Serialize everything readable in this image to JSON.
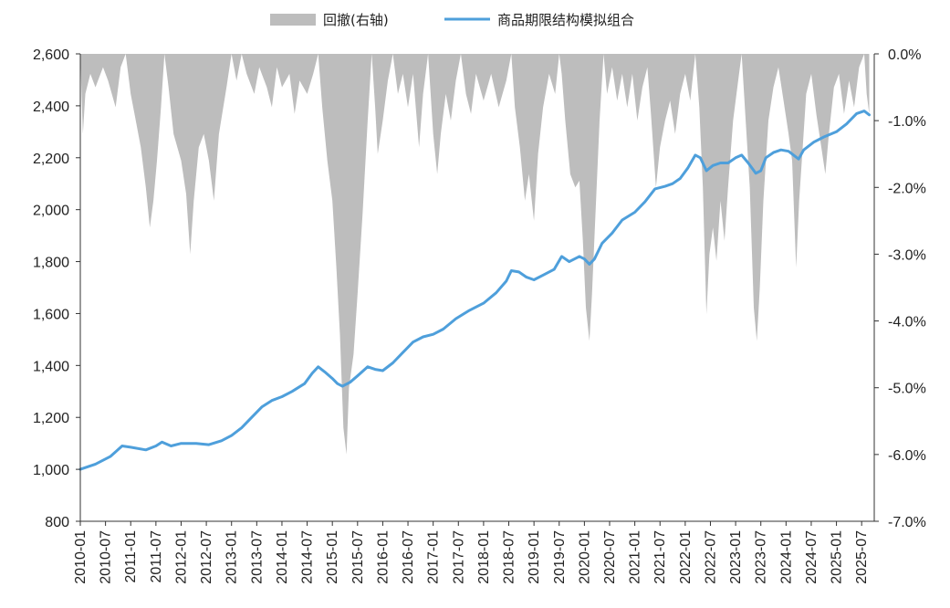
{
  "chart_data": {
    "type": "line",
    "title": "",
    "legend": {
      "placement": "top-center",
      "items": [
        {
          "label": "回撤(右轴)",
          "kind": "area",
          "color": "#bdbdbd"
        },
        {
          "label": "商品期限结构模拟组合",
          "kind": "line",
          "color": "#4e9fdb"
        }
      ]
    },
    "x_ticks": [
      "2010-01",
      "2010-07",
      "2011-01",
      "2011-07",
      "2012-01",
      "2012-07",
      "2013-01",
      "2013-07",
      "2014-01",
      "2014-07",
      "2015-01",
      "2015-07",
      "2016-01",
      "2016-07",
      "2017-01",
      "2017-07",
      "2018-01",
      "2018-07",
      "2019-01",
      "2019-07",
      "2020-01",
      "2020-07",
      "2021-01",
      "2021-07",
      "2022-01",
      "2022-07",
      "2023-01",
      "2023-07",
      "2024-01",
      "2024-07",
      "2025-01",
      "2025-07"
    ],
    "y_left": {
      "ticks": [
        "800",
        "1,000",
        "1,200",
        "1,400",
        "1,600",
        "1,800",
        "2,000",
        "2,200",
        "2,400",
        "2,600"
      ],
      "range": [
        800,
        2600
      ]
    },
    "y_right": {
      "ticks": [
        "0.0%",
        "-1.0%",
        "-2.0%",
        "-3.0%",
        "-4.0%",
        "-5.0%",
        "-6.0%",
        "-7.0%"
      ],
      "range": [
        -7.0,
        0.0
      ]
    },
    "grid": false,
    "series": [
      {
        "name": "商品期限结构模拟组合",
        "axis": "left",
        "color": "#4e9fdb",
        "points": [
          [
            2010.0,
            1000
          ],
          [
            2010.3,
            1020
          ],
          [
            2010.6,
            1050
          ],
          [
            2010.83,
            1090
          ],
          [
            2011.0,
            1085
          ],
          [
            2011.3,
            1075
          ],
          [
            2011.5,
            1090
          ],
          [
            2011.62,
            1105
          ],
          [
            2011.8,
            1090
          ],
          [
            2012.0,
            1100
          ],
          [
            2012.3,
            1100
          ],
          [
            2012.55,
            1095
          ],
          [
            2012.8,
            1110
          ],
          [
            2013.0,
            1130
          ],
          [
            2013.2,
            1160
          ],
          [
            2013.4,
            1200
          ],
          [
            2013.6,
            1240
          ],
          [
            2013.8,
            1265
          ],
          [
            2014.0,
            1280
          ],
          [
            2014.2,
            1300
          ],
          [
            2014.45,
            1330
          ],
          [
            2014.6,
            1370
          ],
          [
            2014.72,
            1395
          ],
          [
            2014.85,
            1375
          ],
          [
            2015.0,
            1350
          ],
          [
            2015.1,
            1330
          ],
          [
            2015.2,
            1320
          ],
          [
            2015.35,
            1335
          ],
          [
            2015.5,
            1360
          ],
          [
            2015.7,
            1395
          ],
          [
            2015.85,
            1385
          ],
          [
            2016.0,
            1380
          ],
          [
            2016.2,
            1410
          ],
          [
            2016.4,
            1450
          ],
          [
            2016.6,
            1490
          ],
          [
            2016.8,
            1510
          ],
          [
            2017.0,
            1520
          ],
          [
            2017.2,
            1540
          ],
          [
            2017.45,
            1580
          ],
          [
            2017.7,
            1610
          ],
          [
            2018.0,
            1640
          ],
          [
            2018.25,
            1680
          ],
          [
            2018.45,
            1725
          ],
          [
            2018.55,
            1765
          ],
          [
            2018.7,
            1760
          ],
          [
            2018.85,
            1740
          ],
          [
            2019.0,
            1730
          ],
          [
            2019.2,
            1750
          ],
          [
            2019.4,
            1770
          ],
          [
            2019.55,
            1820
          ],
          [
            2019.7,
            1800
          ],
          [
            2019.9,
            1820
          ],
          [
            2020.0,
            1810
          ],
          [
            2020.1,
            1790
          ],
          [
            2020.2,
            1810
          ],
          [
            2020.35,
            1870
          ],
          [
            2020.55,
            1910
          ],
          [
            2020.75,
            1960
          ],
          [
            2021.0,
            1990
          ],
          [
            2021.2,
            2030
          ],
          [
            2021.4,
            2080
          ],
          [
            2021.6,
            2090
          ],
          [
            2021.75,
            2100
          ],
          [
            2021.9,
            2120
          ],
          [
            2022.05,
            2160
          ],
          [
            2022.2,
            2210
          ],
          [
            2022.3,
            2200
          ],
          [
            2022.42,
            2150
          ],
          [
            2022.55,
            2170
          ],
          [
            2022.7,
            2180
          ],
          [
            2022.85,
            2180
          ],
          [
            2023.0,
            2200
          ],
          [
            2023.12,
            2210
          ],
          [
            2023.25,
            2180
          ],
          [
            2023.4,
            2140
          ],
          [
            2023.5,
            2150
          ],
          [
            2023.6,
            2200
          ],
          [
            2023.75,
            2220
          ],
          [
            2023.9,
            2230
          ],
          [
            2024.05,
            2225
          ],
          [
            2024.15,
            2210
          ],
          [
            2024.25,
            2195
          ],
          [
            2024.35,
            2230
          ],
          [
            2024.55,
            2260
          ],
          [
            2024.75,
            2280
          ],
          [
            2025.0,
            2300
          ],
          [
            2025.2,
            2330
          ],
          [
            2025.4,
            2370
          ],
          [
            2025.55,
            2380
          ],
          [
            2025.65,
            2365
          ]
        ]
      },
      {
        "name": "回撤(右轴)",
        "axis": "right",
        "color": "#bdbdbd",
        "points": [
          [
            2010.0,
            0
          ],
          [
            2010.05,
            -1.2
          ],
          [
            2010.1,
            -0.6
          ],
          [
            2010.2,
            -0.3
          ],
          [
            2010.3,
            -0.5
          ],
          [
            2010.45,
            -0.2
          ],
          [
            2010.55,
            -0.4
          ],
          [
            2010.7,
            -0.8
          ],
          [
            2010.8,
            -0.2
          ],
          [
            2010.9,
            0
          ],
          [
            2011.0,
            -0.6
          ],
          [
            2011.1,
            -1.0
          ],
          [
            2011.2,
            -1.4
          ],
          [
            2011.3,
            -2.0
          ],
          [
            2011.38,
            -2.6
          ],
          [
            2011.45,
            -2.2
          ],
          [
            2011.52,
            -1.6
          ],
          [
            2011.6,
            -0.8
          ],
          [
            2011.67,
            0
          ],
          [
            2011.75,
            -0.5
          ],
          [
            2011.85,
            -1.2
          ],
          [
            2012.0,
            -1.6
          ],
          [
            2012.1,
            -2.1
          ],
          [
            2012.18,
            -3.0
          ],
          [
            2012.25,
            -2.2
          ],
          [
            2012.35,
            -1.4
          ],
          [
            2012.45,
            -1.2
          ],
          [
            2012.55,
            -1.6
          ],
          [
            2012.65,
            -2.2
          ],
          [
            2012.75,
            -1.2
          ],
          [
            2012.9,
            -0.5
          ],
          [
            2013.0,
            0
          ],
          [
            2013.1,
            -0.4
          ],
          [
            2013.2,
            0
          ],
          [
            2013.3,
            -0.3
          ],
          [
            2013.45,
            -0.6
          ],
          [
            2013.55,
            -0.2
          ],
          [
            2013.7,
            -0.5
          ],
          [
            2013.8,
            -0.8
          ],
          [
            2013.9,
            -0.2
          ],
          [
            2014.0,
            -0.5
          ],
          [
            2014.15,
            -0.3
          ],
          [
            2014.25,
            -0.9
          ],
          [
            2014.35,
            -0.4
          ],
          [
            2014.5,
            -0.6
          ],
          [
            2014.62,
            -0.3
          ],
          [
            2014.72,
            0
          ],
          [
            2014.8,
            -0.8
          ],
          [
            2014.9,
            -1.6
          ],
          [
            2015.0,
            -2.2
          ],
          [
            2015.08,
            -3.2
          ],
          [
            2015.15,
            -4.2
          ],
          [
            2015.22,
            -5.6
          ],
          [
            2015.28,
            -6.0
          ],
          [
            2015.33,
            -5.0
          ],
          [
            2015.42,
            -4.5
          ],
          [
            2015.5,
            -3.6
          ],
          [
            2015.6,
            -2.4
          ],
          [
            2015.7,
            -1.0
          ],
          [
            2015.78,
            0
          ],
          [
            2015.85,
            -0.8
          ],
          [
            2015.9,
            -1.5
          ],
          [
            2016.0,
            -1.0
          ],
          [
            2016.1,
            -0.4
          ],
          [
            2016.2,
            0
          ],
          [
            2016.3,
            -0.6
          ],
          [
            2016.4,
            -0.3
          ],
          [
            2016.5,
            -0.8
          ],
          [
            2016.6,
            -0.3
          ],
          [
            2016.72,
            -1.4
          ],
          [
            2016.8,
            -0.6
          ],
          [
            2016.9,
            0
          ],
          [
            2017.0,
            -1.2
          ],
          [
            2017.08,
            -1.8
          ],
          [
            2017.15,
            -1.2
          ],
          [
            2017.25,
            -0.6
          ],
          [
            2017.35,
            -1.0
          ],
          [
            2017.45,
            -0.4
          ],
          [
            2017.55,
            0
          ],
          [
            2017.65,
            -0.6
          ],
          [
            2017.75,
            -0.9
          ],
          [
            2017.85,
            -0.3
          ],
          [
            2018.0,
            -0.7
          ],
          [
            2018.15,
            -0.3
          ],
          [
            2018.3,
            -0.8
          ],
          [
            2018.45,
            -0.4
          ],
          [
            2018.55,
            0
          ],
          [
            2018.62,
            -0.8
          ],
          [
            2018.72,
            -1.4
          ],
          [
            2018.82,
            -2.2
          ],
          [
            2018.9,
            -1.8
          ],
          [
            2019.0,
            -2.5
          ],
          [
            2019.08,
            -1.5
          ],
          [
            2019.18,
            -0.8
          ],
          [
            2019.3,
            -0.3
          ],
          [
            2019.42,
            -0.6
          ],
          [
            2019.5,
            0
          ],
          [
            2019.55,
            -0.3
          ],
          [
            2019.62,
            -1.0
          ],
          [
            2019.72,
            -1.8
          ],
          [
            2019.82,
            -2.0
          ],
          [
            2019.9,
            -1.9
          ],
          [
            2019.97,
            -2.8
          ],
          [
            2020.03,
            -3.8
          ],
          [
            2020.1,
            -4.3
          ],
          [
            2020.15,
            -3.6
          ],
          [
            2020.22,
            -2.4
          ],
          [
            2020.3,
            -1.0
          ],
          [
            2020.38,
            0
          ],
          [
            2020.45,
            -0.6
          ],
          [
            2020.55,
            -0.2
          ],
          [
            2020.65,
            -0.7
          ],
          [
            2020.75,
            -0.3
          ],
          [
            2020.85,
            -0.8
          ],
          [
            2020.95,
            -0.3
          ],
          [
            2021.05,
            -1.0
          ],
          [
            2021.15,
            -0.5
          ],
          [
            2021.25,
            -0.2
          ],
          [
            2021.32,
            -0.9
          ],
          [
            2021.42,
            -2.0
          ],
          [
            2021.5,
            -1.4
          ],
          [
            2021.6,
            -1.0
          ],
          [
            2021.7,
            -0.7
          ],
          [
            2021.8,
            -1.2
          ],
          [
            2021.9,
            -0.6
          ],
          [
            2022.0,
            -0.3
          ],
          [
            2022.1,
            -0.7
          ],
          [
            2022.2,
            0
          ],
          [
            2022.28,
            -0.8
          ],
          [
            2022.35,
            -2.0
          ],
          [
            2022.42,
            -3.9
          ],
          [
            2022.48,
            -3.0
          ],
          [
            2022.55,
            -2.6
          ],
          [
            2022.62,
            -3.1
          ],
          [
            2022.7,
            -2.2
          ],
          [
            2022.78,
            -2.8
          ],
          [
            2022.85,
            -2.0
          ],
          [
            2022.95,
            -1.0
          ],
          [
            2023.05,
            -0.4
          ],
          [
            2023.12,
            0
          ],
          [
            2023.2,
            -1.0
          ],
          [
            2023.28,
            -2.0
          ],
          [
            2023.36,
            -3.8
          ],
          [
            2023.42,
            -4.3
          ],
          [
            2023.48,
            -3.5
          ],
          [
            2023.55,
            -2.2
          ],
          [
            2023.65,
            -1.0
          ],
          [
            2023.75,
            -0.5
          ],
          [
            2023.85,
            -0.2
          ],
          [
            2023.95,
            -0.7
          ],
          [
            2024.05,
            -1.2
          ],
          [
            2024.12,
            -1.6
          ],
          [
            2024.2,
            -3.2
          ],
          [
            2024.26,
            -2.2
          ],
          [
            2024.33,
            -1.4
          ],
          [
            2024.4,
            -0.6
          ],
          [
            2024.5,
            -0.3
          ],
          [
            2024.6,
            -0.9
          ],
          [
            2024.7,
            -1.4
          ],
          [
            2024.78,
            -1.8
          ],
          [
            2024.85,
            -1.2
          ],
          [
            2024.95,
            -0.5
          ],
          [
            2025.05,
            -0.3
          ],
          [
            2025.15,
            -0.9
          ],
          [
            2025.25,
            -0.4
          ],
          [
            2025.35,
            -0.8
          ],
          [
            2025.45,
            -0.2
          ],
          [
            2025.55,
            0
          ],
          [
            2025.6,
            -0.6
          ],
          [
            2025.65,
            -0.9
          ]
        ]
      }
    ]
  }
}
